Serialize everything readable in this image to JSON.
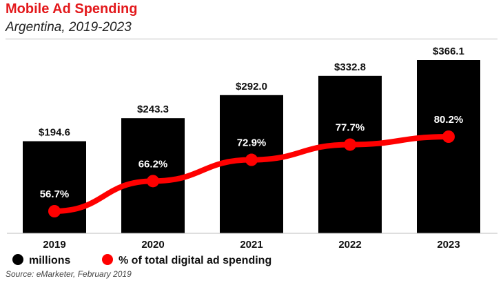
{
  "header": {
    "title": "Mobile Ad Spending",
    "subtitle": "Argentina, 2019-2023"
  },
  "footer": {
    "source": "Source: eMarketer, February 2019"
  },
  "colors": {
    "title": "#e3191c",
    "bars": "#000000",
    "line": "#ff0000"
  },
  "legend": {
    "placement": "bottom-left",
    "items": [
      {
        "label": "millions",
        "marker": "black-dot"
      },
      {
        "label": "% of total digital ad spending",
        "marker": "red-dot"
      }
    ]
  },
  "chart_data": {
    "type": "bar",
    "categories": [
      "2019",
      "2020",
      "2021",
      "2022",
      "2023"
    ],
    "series": [
      {
        "name": "millions",
        "type": "bar",
        "values": [
          194.6,
          243.3,
          292.0,
          332.8,
          366.1
        ],
        "labels": [
          "$194.6",
          "$243.3",
          "$292.0",
          "$332.8",
          "$366.1"
        ]
      },
      {
        "name": "% of total digital ad spending",
        "type": "line",
        "values": [
          56.7,
          66.2,
          72.9,
          77.7,
          80.2
        ],
        "labels": [
          "56.7%",
          "66.2%",
          "72.9%",
          "77.7%",
          "80.2%"
        ]
      }
    ],
    "ylim": [
      0,
      366.1
    ],
    "grid": false,
    "legend": "bottom-left"
  }
}
